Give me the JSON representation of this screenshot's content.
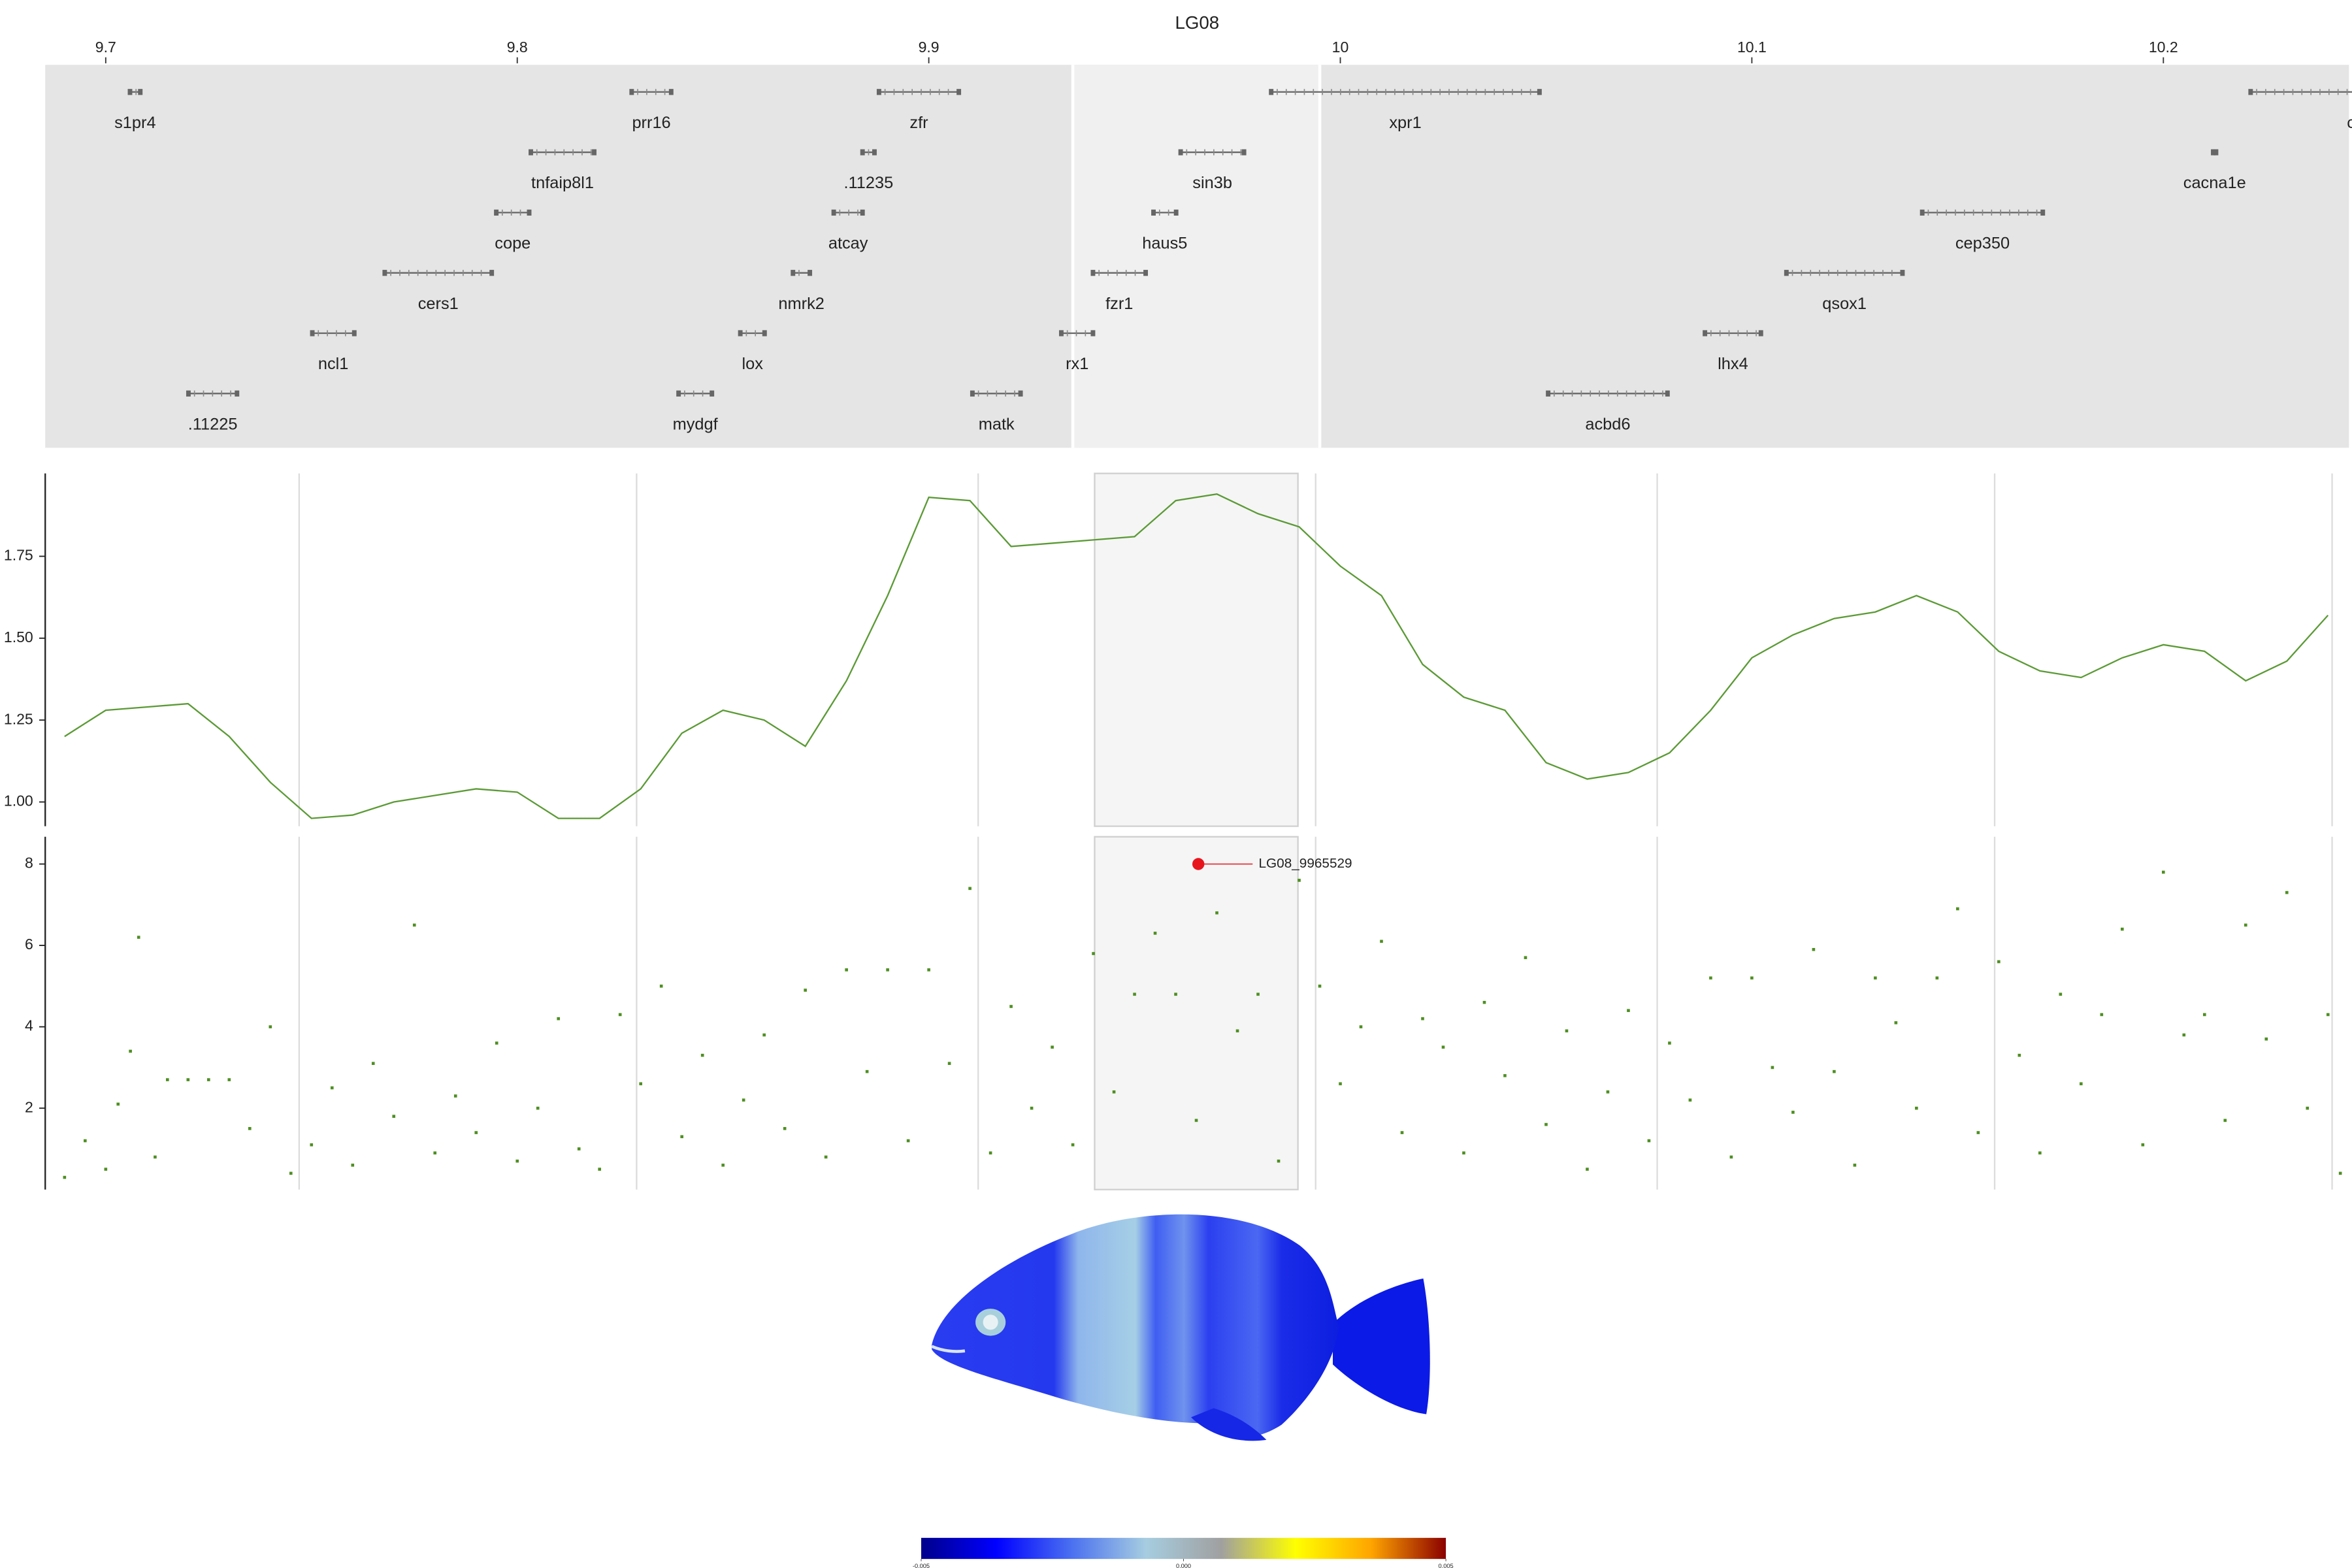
{
  "chart_data": [
    {
      "type": "gene",
      "title": "LG08",
      "xlim": [
        9.6853,
        10.2451
      ],
      "xticks": [
        9.7,
        9.8,
        9.9,
        10,
        10.1,
        10.2
      ],
      "highlight": [
        9.935,
        9.995
      ],
      "rows": [
        [
          {
            "name": "s1pr4",
            "start": 9.7059,
            "end": 9.7084
          },
          {
            "name": "prr16",
            "start": 9.8278,
            "end": 9.8374
          },
          {
            "name": "zfr",
            "start": 9.8879,
            "end": 9.9073
          },
          {
            "name": "xpr1",
            "start": 9.9832,
            "end": 10.0484
          },
          {
            "name": "c",
            "start": 10.2212,
            "end": 10.27
          }
        ],
        [
          {
            "name": "tnfaip8l1",
            "start": 9.8033,
            "end": 9.8187
          },
          {
            "name": ".11235",
            "start": 9.8839,
            "end": 9.8868
          },
          {
            "name": "sin3b",
            "start": 9.9612,
            "end": 9.9766
          },
          {
            "name": "cacna1e",
            "start": 10.2121,
            "end": 10.2128
          }
        ],
        [
          {
            "name": "cope",
            "start": 9.7949,
            "end": 9.8029
          },
          {
            "name": "atcay",
            "start": 9.8769,
            "end": 9.8839
          },
          {
            "name": "haus5",
            "start": 9.9546,
            "end": 9.9601
          },
          {
            "name": "cep350",
            "start": 10.1414,
            "end": 10.1707
          }
        ],
        [
          {
            "name": "cers1",
            "start": 9.7678,
            "end": 9.7938
          },
          {
            "name": "nmrk2",
            "start": 9.867,
            "end": 9.8711
          },
          {
            "name": "fzr1",
            "start": 9.9399,
            "end": 9.9527
          },
          {
            "name": "qsox1",
            "start": 10.1084,
            "end": 10.1366
          }
        ],
        [
          {
            "name": "ncl1",
            "start": 9.7502,
            "end": 9.7604
          },
          {
            "name": "lox",
            "start": 9.8542,
            "end": 9.8601
          },
          {
            "name": "rx1",
            "start": 9.9322,
            "end": 9.9399
          },
          {
            "name": "lhx4",
            "start": 10.0886,
            "end": 10.1022
          }
        ],
        [
          {
            "name": ".11225",
            "start": 9.7201,
            "end": 9.7319
          },
          {
            "name": "mydgf",
            "start": 9.8392,
            "end": 9.8473
          },
          {
            "name": "matk",
            "start": 9.9106,
            "end": 9.9223
          },
          {
            "name": "acbd6",
            "start": 10.0505,
            "end": 10.0795
          }
        ]
      ]
    },
    {
      "type": "line",
      "color": "#5b9a35",
      "xlim": [
        9.6853,
        10.2451
      ],
      "xticks": [
        9.747,
        9.829,
        9.912,
        9.994,
        10.077,
        10.159,
        10.241
      ],
      "grid": true,
      "highlight": [
        9.9403,
        9.9897
      ],
      "ylim": [
        0.926,
        2.003
      ],
      "yticks": [
        {
          "value": 1,
          "label": "1.00"
        },
        {
          "value": 1.25,
          "label": "1.25"
        },
        {
          "value": 1.5,
          "label": "1.50"
        },
        {
          "value": 1.75,
          "label": "1.75"
        }
      ],
      "x": [
        9.69,
        9.7,
        9.71,
        9.72,
        9.73,
        9.74,
        9.75,
        9.76,
        9.77,
        9.78,
        9.79,
        9.8,
        9.81,
        9.82,
        9.83,
        9.84,
        9.85,
        9.86,
        9.87,
        9.88,
        9.89,
        9.9,
        9.91,
        9.92,
        9.93,
        9.94,
        9.95,
        9.96,
        9.97,
        9.98,
        9.99,
        10,
        10.01,
        10.02,
        10.03,
        10.04,
        10.05,
        10.06,
        10.07,
        10.08,
        10.09,
        10.1,
        10.11,
        10.12,
        10.13,
        10.14,
        10.15,
        10.16,
        10.17,
        10.18,
        10.19,
        10.2,
        10.21,
        10.22,
        10.23,
        10.24
      ],
      "values": [
        1.2,
        1.28,
        1.29,
        1.3,
        1.2,
        1.06,
        0.95,
        0.96,
        1.0,
        1.02,
        1.04,
        1.03,
        0.95,
        0.95,
        1.04,
        1.21,
        1.28,
        1.25,
        1.17,
        1.37,
        1.63,
        1.93,
        1.92,
        1.78,
        1.79,
        1.8,
        1.81,
        1.92,
        1.94,
        1.88,
        1.84,
        1.72,
        1.63,
        1.42,
        1.32,
        1.28,
        1.12,
        1.07,
        1.09,
        1.15,
        1.28,
        1.44,
        1.51,
        1.56,
        1.58,
        1.63,
        1.58,
        1.46,
        1.4,
        1.38,
        1.44,
        1.48,
        1.46,
        1.37,
        1.43,
        1.57
      ]
    },
    {
      "type": "scatter",
      "color": "#4e8f22",
      "xlim": [
        9.6853,
        10.2451
      ],
      "xticks": [
        9.747,
        9.829,
        9.912,
        9.994,
        10.077,
        10.159,
        10.241
      ],
      "grid": true,
      "highlight": [
        9.9403,
        9.9897
      ],
      "ylim": [
        0,
        8.67
      ],
      "yticks": [
        2,
        4,
        6,
        8
      ],
      "x": [
        9.69,
        9.695,
        9.7,
        9.703,
        9.706,
        9.708,
        9.712,
        9.715,
        9.72,
        9.725,
        9.73,
        9.735,
        9.74,
        9.745,
        9.75,
        9.755,
        9.76,
        9.765,
        9.77,
        9.775,
        9.78,
        9.785,
        9.79,
        9.795,
        9.8,
        9.805,
        9.81,
        9.815,
        9.82,
        9.825,
        9.83,
        9.835,
        9.84,
        9.845,
        9.85,
        9.855,
        9.86,
        9.865,
        9.87,
        9.875,
        9.88,
        9.885,
        9.89,
        9.895,
        9.9,
        9.905,
        9.91,
        9.915,
        9.92,
        9.925,
        9.93,
        9.935,
        9.94,
        9.945,
        9.95,
        9.955,
        9.96,
        9.965,
        9.97,
        9.975,
        9.98,
        9.985,
        9.99,
        9.995,
        10,
        10.005,
        10.01,
        10.015,
        10.02,
        10.025,
        10.03,
        10.035,
        10.04,
        10.045,
        10.05,
        10.055,
        10.06,
        10.065,
        10.07,
        10.075,
        10.08,
        10.085,
        10.09,
        10.095,
        10.1,
        10.105,
        10.11,
        10.115,
        10.12,
        10.125,
        10.13,
        10.135,
        10.14,
        10.145,
        10.15,
        10.155,
        10.16,
        10.165,
        10.17,
        10.175,
        10.18,
        10.185,
        10.19,
        10.195,
        10.2,
        10.205,
        10.21,
        10.215,
        10.22,
        10.225,
        10.23,
        10.235,
        10.24,
        10.243
      ],
      "values": [
        0.3,
        1.2,
        0.5,
        2.1,
        3.4,
        6.2,
        0.8,
        2.7,
        2.7,
        2.7,
        2.7,
        1.5,
        4.0,
        0.4,
        1.1,
        2.5,
        0.6,
        3.1,
        1.8,
        6.5,
        0.9,
        2.3,
        1.4,
        3.6,
        0.7,
        2.0,
        4.2,
        1.0,
        0.5,
        4.3,
        2.6,
        5.0,
        1.3,
        3.3,
        0.6,
        2.2,
        3.8,
        1.5,
        4.9,
        0.8,
        5.4,
        2.9,
        5.4,
        1.2,
        5.4,
        3.1,
        7.4,
        0.9,
        4.5,
        2.0,
        3.5,
        1.1,
        5.8,
        2.4,
        4.8,
        6.3,
        4.8,
        1.7,
        6.8,
        3.9,
        4.8,
        0.7,
        7.6,
        5.0,
        2.6,
        4.0,
        6.1,
        1.4,
        4.2,
        3.5,
        0.9,
        4.6,
        2.8,
        5.7,
        1.6,
        3.9,
        0.5,
        2.4,
        4.4,
        1.2,
        3.6,
        2.2,
        5.2,
        0.8,
        5.2,
        3.0,
        1.9,
        5.9,
        2.9,
        0.6,
        5.2,
        4.1,
        2.0,
        5.2,
        6.9,
        1.4,
        5.6,
        3.3,
        0.9,
        4.8,
        2.6,
        4.3,
        6.4,
        1.1,
        7.8,
        3.8,
        4.3,
        1.7,
        6.5,
        3.7,
        7.3,
        2.0,
        4.3,
        0.4
      ],
      "annotation": {
        "label": "LG08_9965529",
        "x": 9.9655,
        "y": 8.0,
        "color": "#e8141c"
      }
    },
    {
      "type": "colorbar",
      "colors": [
        "#00008b",
        "#0000ff",
        "#4a70f0",
        "#a6cde0",
        "#a0a0a0",
        "#ffff00",
        "#ffa500",
        "#8b0000"
      ],
      "xlim": [
        -0.005,
        0.005
      ],
      "xticks": [
        -0.005,
        {
          "value": 0,
          "label": "0.000"
        },
        0.005
      ]
    }
  ]
}
